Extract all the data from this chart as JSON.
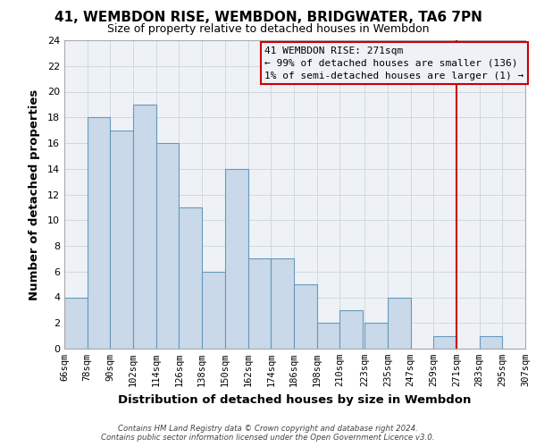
{
  "title": "41, WEMBDON RISE, WEMBDON, BRIDGWATER, TA6 7PN",
  "subtitle": "Size of property relative to detached houses in Wembdon",
  "xlabel": "Distribution of detached houses by size in Wembdon",
  "ylabel": "Number of detached properties",
  "bin_edges": [
    66,
    78,
    90,
    102,
    114,
    126,
    138,
    150,
    162,
    174,
    186,
    198,
    210,
    223,
    235,
    247,
    259,
    271,
    283,
    295,
    307
  ],
  "bin_labels": [
    "66sqm",
    "78sqm",
    "90sqm",
    "102sqm",
    "114sqm",
    "126sqm",
    "138sqm",
    "150sqm",
    "162sqm",
    "174sqm",
    "186sqm",
    "198sqm",
    "210sqm",
    "223sqm",
    "235sqm",
    "247sqm",
    "259sqm",
    "271sqm",
    "283sqm",
    "295sqm",
    "307sqm"
  ],
  "counts": [
    4,
    18,
    17,
    19,
    16,
    11,
    6,
    14,
    7,
    7,
    5,
    2,
    3,
    2,
    4,
    0,
    1,
    0,
    1,
    0
  ],
  "bar_facecolor": "#c9d9ea",
  "bar_edgecolor": "#6699bb",
  "grid_color": "#d0d8e0",
  "background_color": "#ffffff",
  "plot_bg_color": "#eef2f7",
  "vline_x": 271,
  "vline_color": "#cc0000",
  "annotation_title": "41 WEMBDON RISE: 271sqm",
  "annotation_line1": "← 99% of detached houses are smaller (136)",
  "annotation_line2": "1% of semi-detached houses are larger (1) →",
  "annotation_box_edgecolor": "#cc0000",
  "ylim": [
    0,
    24
  ],
  "yticks": [
    0,
    2,
    4,
    6,
    8,
    10,
    12,
    14,
    16,
    18,
    20,
    22,
    24
  ],
  "footer1": "Contains HM Land Registry data © Crown copyright and database right 2024.",
  "footer2": "Contains public sector information licensed under the Open Government Licence v3.0."
}
